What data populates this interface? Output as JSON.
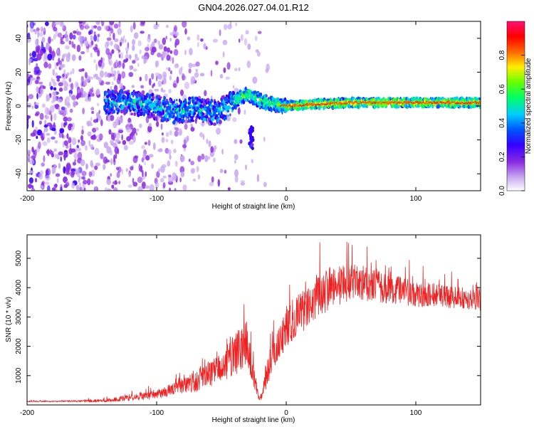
{
  "figure": {
    "title": "GN04.2026.027.04.01.R12"
  },
  "chart_data": [
    {
      "type": "heatmap",
      "title": "GN04.2026.027.04.01.R12",
      "xlabel": "Height of straight line (km)",
      "ylabel": "Frequency (Hz)",
      "xlim": [
        -200,
        150
      ],
      "ylim": [
        -50,
        50
      ],
      "xticks": [
        -200,
        -100,
        0,
        100
      ],
      "yticks": [
        -40,
        -20,
        0,
        20,
        40
      ],
      "xtick_labels": [
        "-200",
        "-100",
        "0",
        "100"
      ],
      "ytick_labels": [
        "-40",
        "-20",
        "0",
        "20",
        "40"
      ],
      "colorbar": {
        "label": "Normalized spectral amplitude",
        "range": [
          0.0,
          1.0
        ],
        "ticks": [
          0.0,
          0.2,
          0.4,
          0.6,
          0.8
        ],
        "tick_labels": [
          "0.0",
          "0.2",
          "0.4",
          "0.6",
          "0.8"
        ],
        "colors": [
          "#ffffff",
          "#c8a8f0",
          "#8a2be2",
          "#3300ff",
          "#0055ff",
          "#00ccff",
          "#00ff66",
          "#66ff00",
          "#ffee00",
          "#ff6600",
          "#ff0000",
          "#ff1177"
        ]
      },
      "ridge": [
        {
          "x": -130,
          "y": 3
        },
        {
          "x": -110,
          "y": 1
        },
        {
          "x": -90,
          "y": -3
        },
        {
          "x": -70,
          "y": -2
        },
        {
          "x": -55,
          "y": -4
        },
        {
          "x": -45,
          "y": 0
        },
        {
          "x": -35,
          "y": 5
        },
        {
          "x": -30,
          "y": 7
        },
        {
          "x": -20,
          "y": 3
        },
        {
          "x": -10,
          "y": 1
        },
        {
          "x": 0,
          "y": 0
        },
        {
          "x": 20,
          "y": 1
        },
        {
          "x": 50,
          "y": 2
        },
        {
          "x": 100,
          "y": 2
        },
        {
          "x": 150,
          "y": 2
        }
      ],
      "secondary_feature": {
        "x": -27,
        "y_min": -25,
        "y_max": -12
      }
    },
    {
      "type": "line",
      "title": "",
      "xlabel": "Height of straight line (km)",
      "ylabel": "SNR (10 * v/v)",
      "xlim": [
        -200,
        150
      ],
      "ylim": [
        0,
        5800
      ],
      "xticks": [
        -200,
        -100,
        0,
        100
      ],
      "yticks": [
        1000,
        2000,
        3000,
        4000,
        5000
      ],
      "xtick_labels": [
        "-200",
        "-100",
        "0",
        "100"
      ],
      "ytick_labels": [
        "1000",
        "2000",
        "3000",
        "4000",
        "5000"
      ],
      "series": [
        {
          "name": "SNR",
          "color": "#ee2222",
          "x": [
            -200,
            -180,
            -160,
            -140,
            -120,
            -100,
            -90,
            -80,
            -70,
            -60,
            -50,
            -45,
            -40,
            -35,
            -30,
            -25,
            -22,
            -20,
            -18,
            -15,
            -12,
            -8,
            -5,
            0,
            5,
            10,
            15,
            20,
            30,
            40,
            50,
            60,
            70,
            80,
            100,
            120,
            140,
            150
          ],
          "values": [
            120,
            120,
            130,
            150,
            250,
            350,
            500,
            650,
            800,
            1000,
            1300,
            1500,
            1700,
            1900,
            2100,
            1000,
            400,
            200,
            500,
            1000,
            1500,
            1900,
            2200,
            2600,
            2900,
            3100,
            3300,
            3600,
            3900,
            4100,
            4200,
            4100,
            4050,
            3950,
            3800,
            3700,
            3600,
            3550
          ],
          "noise": [
            20,
            20,
            30,
            60,
            100,
            150,
            200,
            250,
            350,
            400,
            500,
            600,
            700,
            800,
            800,
            400,
            150,
            100,
            200,
            450,
            500,
            550,
            600,
            650,
            700,
            700,
            700,
            750,
            750,
            700,
            650,
            600,
            550,
            500,
            450,
            400,
            350,
            350
          ]
        }
      ]
    }
  ]
}
